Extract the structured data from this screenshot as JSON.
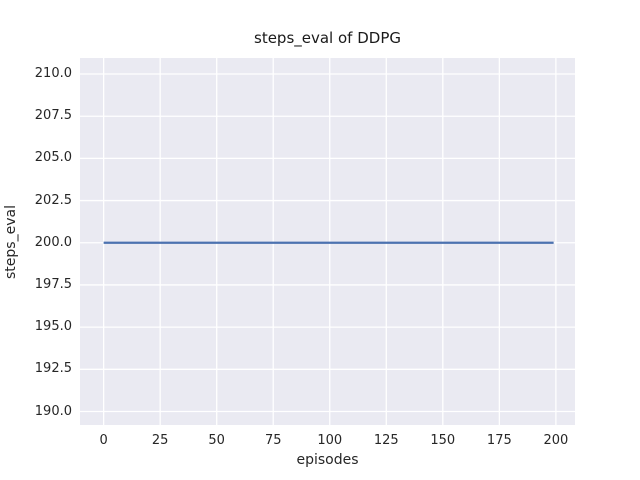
{
  "figure": {
    "background": "#ffffff"
  },
  "chart_data": {
    "type": "line",
    "title": "steps_eval of DDPG",
    "xlabel": "episodes",
    "ylabel": "steps_eval",
    "xlim": [
      -10.45,
      208.45
    ],
    "ylim": [
      189.2,
      210.95
    ],
    "xticks": [
      0,
      25,
      50,
      75,
      100,
      125,
      150,
      175,
      200
    ],
    "xtick_labels": [
      "0",
      "25",
      "50",
      "75",
      "100",
      "125",
      "150",
      "175",
      "200"
    ],
    "yticks": [
      190.0,
      192.5,
      195.0,
      197.5,
      200.0,
      202.5,
      205.0,
      207.5,
      210.0
    ],
    "ytick_labels": [
      "190.0",
      "192.5",
      "195.0",
      "197.5",
      "200.0",
      "202.5",
      "205.0",
      "207.5",
      "210.0"
    ],
    "grid": true,
    "legend_position": "none",
    "plot_background": "#eaeaf2",
    "grid_color": "#ffffff",
    "text_color": "#262626",
    "series": [
      {
        "name": "DDPG",
        "color": "#4c72b0",
        "x": [
          0,
          199
        ],
        "y": [
          200,
          200
        ]
      }
    ]
  }
}
